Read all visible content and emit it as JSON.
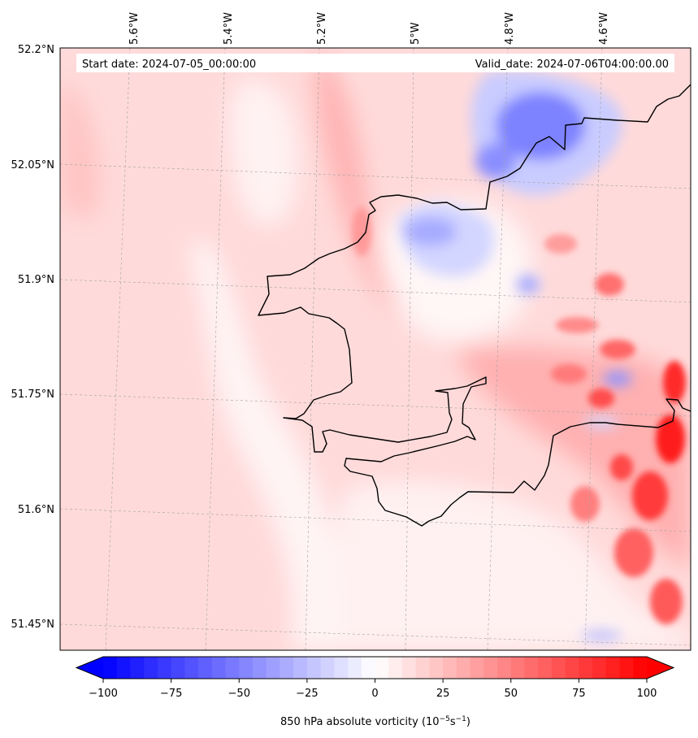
{
  "map": {
    "start_label": "Start date: 2024-07-05_00:00:00",
    "valid_label": "Valid_date: 2024-07-06T04:00:00.00",
    "lon_labels": [
      "5.6°W",
      "5.4°W",
      "5.2°W",
      "5°W",
      "4.8°W",
      "4.6°W"
    ],
    "lat_labels": [
      "52.2°N",
      "52.05°N",
      "51.9°N",
      "51.75°N",
      "51.6°N",
      "51.45°N"
    ],
    "field_colors": {
      "strong_positive": "#ff2020",
      "moderate_positive": "#ff8a8a",
      "weak_positive": "#ffd4d4",
      "near_zero": "#fff5f5",
      "weak_negative": "#dfe2ff",
      "moderate_negative": "#8f95ff",
      "strong_negative": "#5a5cff"
    },
    "coastline_color": "#000000"
  },
  "colorbar": {
    "min": -100,
    "max": 100,
    "steps": 40,
    "extend": "both",
    "cmap": "bwr",
    "low_color": "#0000ff",
    "mid_color": "#ffffff",
    "high_color": "#ff0000",
    "ticks": [
      "−100",
      "−75",
      "−50",
      "−25",
      "0",
      "25",
      "50",
      "75",
      "100"
    ],
    "label_main": "850 hPa absolute vorticity (10",
    "label_exp1": "−5",
    "label_mid": "s",
    "label_exp2": "−1",
    "label_end": ")"
  }
}
